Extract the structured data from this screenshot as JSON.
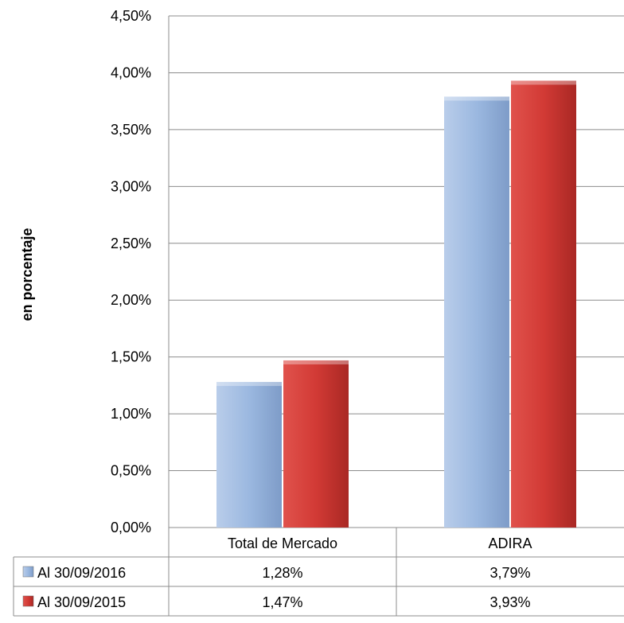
{
  "chart_data": {
    "type": "bar",
    "categories": [
      "Total de Mercado",
      "ADIRA"
    ],
    "series": [
      {
        "name": "Al 30/09/2016",
        "values": [
          1.28,
          3.79
        ],
        "value_labels": [
          "1,28%",
          "3,79%"
        ],
        "color": "#9bb8e0"
      },
      {
        "name": "Al 30/09/2015",
        "values": [
          1.47,
          3.93
        ],
        "value_labels": [
          "1,47%",
          "3,93%"
        ],
        "color": "#d23a35"
      }
    ],
    "ylabel": "en porcentaje",
    "ylim": [
      0,
      4.5
    ],
    "yticks": [
      0,
      0.5,
      1.0,
      1.5,
      2.0,
      2.5,
      3.0,
      3.5,
      4.0,
      4.5
    ],
    "ytick_labels": [
      "0,00%",
      "0,50%",
      "1,00%",
      "1,50%",
      "2,00%",
      "2,50%",
      "3,00%",
      "3,50%",
      "4,00%",
      "4,50%"
    ],
    "grid": true,
    "legend": "data table below chart",
    "data_table": true
  }
}
